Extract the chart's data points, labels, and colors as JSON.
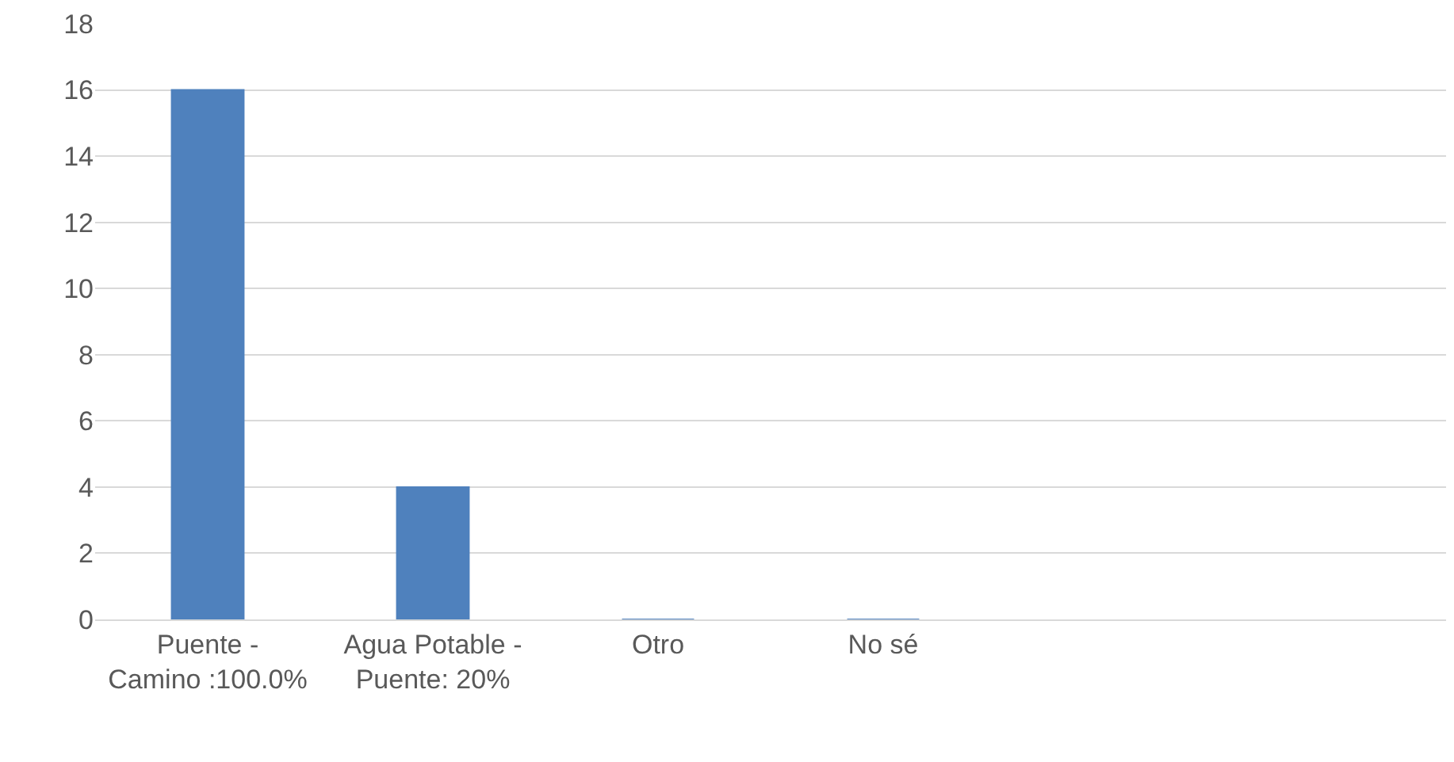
{
  "chart_data": {
    "type": "bar",
    "categories": [
      "Puente - Camino :100.0%",
      "Agua Potable - Puente: 20%",
      "Otro",
      "No sé",
      null,
      null
    ],
    "values": [
      16,
      4,
      0,
      0,
      null,
      null
    ],
    "color": "#4f81bd",
    "ylim": [
      0,
      18
    ],
    "yticks": [
      0,
      2,
      4,
      6,
      8,
      10,
      12,
      14,
      16,
      18
    ],
    "grid": "y"
  }
}
